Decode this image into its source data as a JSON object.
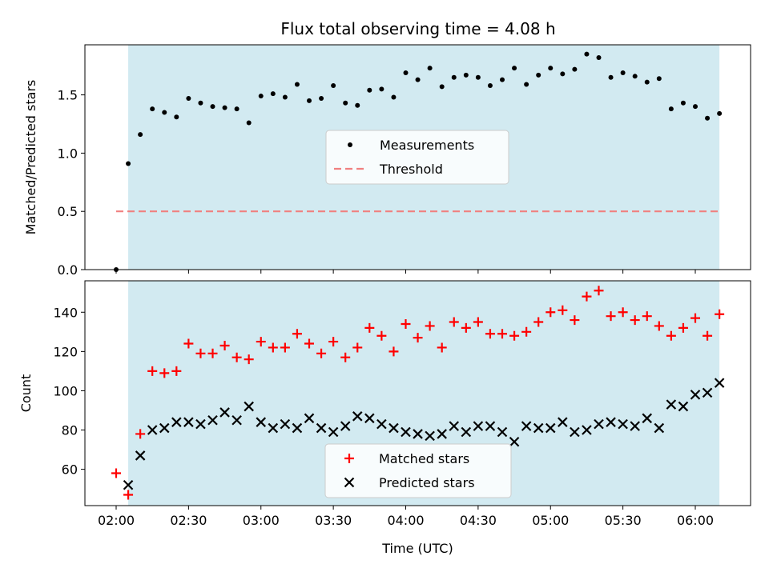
{
  "title": "Flux total observing time = 4.08 h",
  "chart_data": [
    {
      "type": "scatter",
      "ylabel": "Matched/Predicted stars",
      "ylim": [
        0,
        1.93
      ],
      "yticks": [
        "0.0",
        "0.5",
        "1.0",
        "1.5"
      ],
      "shaded_span": [
        "02:05",
        "06:10"
      ],
      "shade_color": "#add8e6",
      "legend_position": "center",
      "series": [
        {
          "name": "Measurements",
          "marker": "dot",
          "color": "#000000",
          "points": [
            [
              "02:00",
              0.0
            ],
            [
              "02:05",
              0.91
            ],
            [
              "02:10",
              1.16
            ],
            [
              "02:15",
              1.38
            ],
            [
              "02:20",
              1.35
            ],
            [
              "02:25",
              1.31
            ],
            [
              "02:30",
              1.47
            ],
            [
              "02:35",
              1.43
            ],
            [
              "02:40",
              1.4
            ],
            [
              "02:45",
              1.39
            ],
            [
              "02:50",
              1.38
            ],
            [
              "02:55",
              1.26
            ],
            [
              "03:00",
              1.49
            ],
            [
              "03:05",
              1.51
            ],
            [
              "03:10",
              1.48
            ],
            [
              "03:15",
              1.59
            ],
            [
              "03:20",
              1.45
            ],
            [
              "03:25",
              1.47
            ],
            [
              "03:30",
              1.58
            ],
            [
              "03:35",
              1.43
            ],
            [
              "03:40",
              1.41
            ],
            [
              "03:45",
              1.54
            ],
            [
              "03:50",
              1.55
            ],
            [
              "03:55",
              1.48
            ],
            [
              "04:00",
              1.69
            ],
            [
              "04:05",
              1.63
            ],
            [
              "04:10",
              1.73
            ],
            [
              "04:15",
              1.57
            ],
            [
              "04:20",
              1.65
            ],
            [
              "04:25",
              1.67
            ],
            [
              "04:30",
              1.65
            ],
            [
              "04:35",
              1.58
            ],
            [
              "04:40",
              1.63
            ],
            [
              "04:45",
              1.73
            ],
            [
              "04:50",
              1.59
            ],
            [
              "04:55",
              1.67
            ],
            [
              "05:00",
              1.73
            ],
            [
              "05:05",
              1.68
            ],
            [
              "05:10",
              1.72
            ],
            [
              "05:15",
              1.85
            ],
            [
              "05:20",
              1.82
            ],
            [
              "05:25",
              1.65
            ],
            [
              "05:30",
              1.69
            ],
            [
              "05:35",
              1.66
            ],
            [
              "05:40",
              1.61
            ],
            [
              "05:45",
              1.64
            ],
            [
              "05:50",
              1.38
            ],
            [
              "05:55",
              1.43
            ],
            [
              "06:00",
              1.4
            ],
            [
              "06:05",
              1.3
            ],
            [
              "06:10",
              1.34
            ]
          ]
        },
        {
          "name": "Threshold",
          "line": "dashed",
          "color": "#f08080",
          "y": 0.5,
          "x_range": [
            "02:00",
            "06:10"
          ]
        }
      ]
    },
    {
      "type": "scatter",
      "xlabel": "Time (UTC)",
      "ylabel": "Count",
      "ylim": [
        41.5,
        156
      ],
      "yticks": [
        "60",
        "80",
        "100",
        "120",
        "140"
      ],
      "xticks": [
        "02:00",
        "02:30",
        "03:00",
        "03:30",
        "04:00",
        "04:30",
        "05:00",
        "05:30",
        "06:00"
      ],
      "shaded_span": [
        "02:05",
        "06:10"
      ],
      "shade_color": "#add8e6",
      "legend_position": "lower center",
      "series": [
        {
          "name": "Matched stars",
          "marker": "plus",
          "color": "#ff0000",
          "points": [
            [
              "02:00",
              58
            ],
            [
              "02:05",
              47
            ],
            [
              "02:10",
              78
            ],
            [
              "02:15",
              110
            ],
            [
              "02:20",
              109
            ],
            [
              "02:25",
              110
            ],
            [
              "02:30",
              124
            ],
            [
              "02:35",
              119
            ],
            [
              "02:40",
              119
            ],
            [
              "02:45",
              123
            ],
            [
              "02:50",
              117
            ],
            [
              "02:55",
              116
            ],
            [
              "03:00",
              125
            ],
            [
              "03:05",
              122
            ],
            [
              "03:10",
              122
            ],
            [
              "03:15",
              129
            ],
            [
              "03:20",
              124
            ],
            [
              "03:25",
              119
            ],
            [
              "03:30",
              125
            ],
            [
              "03:35",
              117
            ],
            [
              "03:40",
              122
            ],
            [
              "03:45",
              132
            ],
            [
              "03:50",
              128
            ],
            [
              "03:55",
              120
            ],
            [
              "04:00",
              134
            ],
            [
              "04:05",
              127
            ],
            [
              "04:10",
              133
            ],
            [
              "04:15",
              122
            ],
            [
              "04:20",
              135
            ],
            [
              "04:25",
              132
            ],
            [
              "04:30",
              135
            ],
            [
              "04:35",
              129
            ],
            [
              "04:40",
              129
            ],
            [
              "04:45",
              128
            ],
            [
              "04:50",
              130
            ],
            [
              "04:55",
              135
            ],
            [
              "05:00",
              140
            ],
            [
              "05:05",
              141
            ],
            [
              "05:10",
              136
            ],
            [
              "05:15",
              148
            ],
            [
              "05:20",
              151
            ],
            [
              "05:25",
              138
            ],
            [
              "05:30",
              140
            ],
            [
              "05:35",
              136
            ],
            [
              "05:40",
              138
            ],
            [
              "05:45",
              133
            ],
            [
              "05:50",
              128
            ],
            [
              "05:55",
              132
            ],
            [
              "06:00",
              137
            ],
            [
              "06:05",
              128
            ],
            [
              "06:10",
              139
            ]
          ]
        },
        {
          "name": "Predicted stars",
          "marker": "x",
          "color": "#000000",
          "points": [
            [
              "02:05",
              52
            ],
            [
              "02:10",
              67
            ],
            [
              "02:15",
              80
            ],
            [
              "02:20",
              81
            ],
            [
              "02:25",
              84
            ],
            [
              "02:30",
              84
            ],
            [
              "02:35",
              83
            ],
            [
              "02:40",
              85
            ],
            [
              "02:45",
              89
            ],
            [
              "02:50",
              85
            ],
            [
              "02:55",
              92
            ],
            [
              "03:00",
              84
            ],
            [
              "03:05",
              81
            ],
            [
              "03:10",
              83
            ],
            [
              "03:15",
              81
            ],
            [
              "03:20",
              86
            ],
            [
              "03:25",
              81
            ],
            [
              "03:30",
              79
            ],
            [
              "03:35",
              82
            ],
            [
              "03:40",
              87
            ],
            [
              "03:45",
              86
            ],
            [
              "03:50",
              83
            ],
            [
              "03:55",
              81
            ],
            [
              "04:00",
              79
            ],
            [
              "04:05",
              78
            ],
            [
              "04:10",
              77
            ],
            [
              "04:15",
              78
            ],
            [
              "04:20",
              82
            ],
            [
              "04:25",
              79
            ],
            [
              "04:30",
              82
            ],
            [
              "04:35",
              82
            ],
            [
              "04:40",
              79
            ],
            [
              "04:45",
              74
            ],
            [
              "04:50",
              82
            ],
            [
              "04:55",
              81
            ],
            [
              "05:00",
              81
            ],
            [
              "05:05",
              84
            ],
            [
              "05:10",
              79
            ],
            [
              "05:15",
              80
            ],
            [
              "05:20",
              83
            ],
            [
              "05:25",
              84
            ],
            [
              "05:30",
              83
            ],
            [
              "05:35",
              82
            ],
            [
              "05:40",
              86
            ],
            [
              "05:45",
              81
            ],
            [
              "05:50",
              93
            ],
            [
              "05:55",
              92
            ],
            [
              "06:00",
              98
            ],
            [
              "06:05",
              99
            ],
            [
              "06:10",
              104
            ]
          ]
        }
      ]
    }
  ]
}
